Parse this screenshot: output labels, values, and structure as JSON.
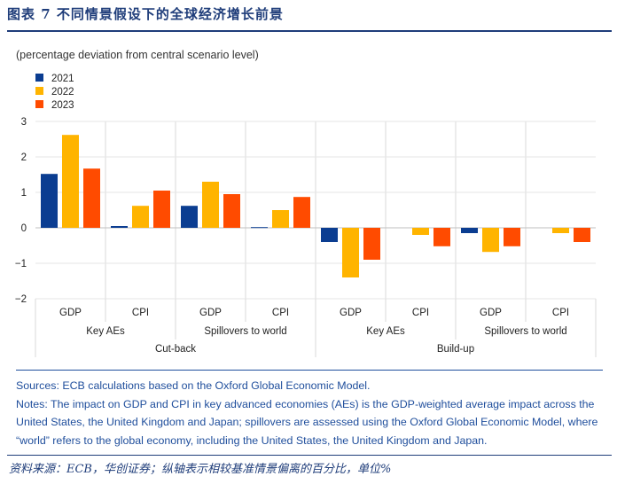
{
  "figure": {
    "title": "图表 7   不同情景假设下的全球经济增长前景",
    "source": "资料来源：ECB，华创证券；纵轴表示相较基准情景偏离的百分比，单位%"
  },
  "notes": {
    "sources": "Sources: ECB calculations based on the Oxford Global Economic Model.",
    "text": "Notes: The impact on GDP and CPI in key advanced economies (AEs) is the GDP-weighted average impact across the United States, the United Kingdom and Japan; spillovers are assessed using the Oxford Global Economic Model, where “world” refers to the global economy, including the United States, the United Kingdom and Japan."
  },
  "chart_data": {
    "type": "bar",
    "subtitle": "(percentage deviation from central scenario level)",
    "ylim": [
      -2,
      3
    ],
    "yticks": [
      3,
      2,
      1,
      0,
      -1,
      -2
    ],
    "categories": [
      "GDP",
      "CPI",
      "GDP",
      "CPI",
      "GDP",
      "CPI",
      "GDP",
      "CPI"
    ],
    "group_level1": [
      "Key AEs",
      "Spillovers to world",
      "Key AEs",
      "Spillovers to world"
    ],
    "group_level2": [
      "Cut-back",
      "Build-up"
    ],
    "series": [
      {
        "name": "2021",
        "color": "#0b3d91",
        "values": [
          1.52,
          0.05,
          0.62,
          0.02,
          -0.4,
          0.0,
          -0.15,
          0.0
        ]
      },
      {
        "name": "2022",
        "color": "#ffb400",
        "values": [
          2.62,
          0.62,
          1.3,
          0.5,
          -1.4,
          -0.2,
          -0.68,
          -0.15
        ]
      },
      {
        "name": "2023",
        "color": "#ff4b00",
        "values": [
          1.67,
          1.05,
          0.95,
          0.87,
          -0.9,
          -0.52,
          -0.52,
          -0.4
        ]
      }
    ]
  }
}
